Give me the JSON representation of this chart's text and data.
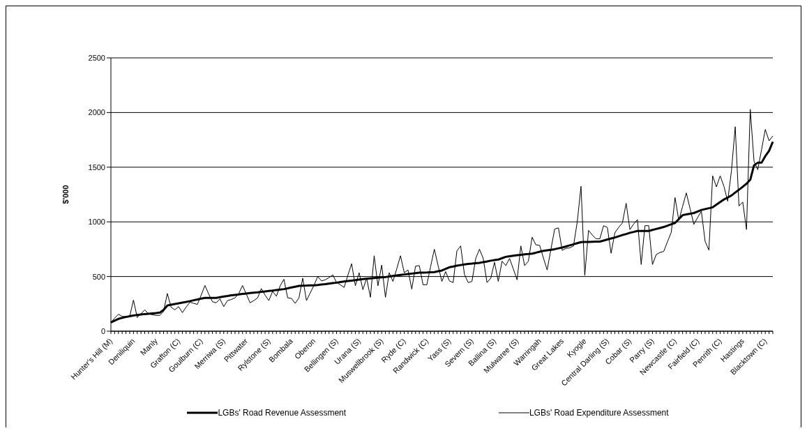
{
  "chart_data": {
    "type": "line",
    "ylabel": "$'000",
    "categories": [
      "Hunter's Hill (M)",
      null,
      null,
      null,
      null,
      null,
      "Deniliquin",
      null,
      null,
      null,
      null,
      null,
      "Manly",
      null,
      null,
      null,
      null,
      null,
      "Grafton (C)",
      null,
      null,
      null,
      null,
      null,
      "Goulburn (C)",
      null,
      null,
      null,
      null,
      null,
      "Merriwa (S)",
      null,
      null,
      null,
      null,
      null,
      "Pittwater",
      null,
      null,
      null,
      null,
      null,
      "Rylstone (S)",
      null,
      null,
      null,
      null,
      null,
      "Bombala",
      null,
      null,
      null,
      null,
      null,
      "Oberon",
      null,
      null,
      null,
      null,
      null,
      "Bellingen (S)",
      null,
      null,
      null,
      null,
      null,
      "Urana (S)",
      null,
      null,
      null,
      null,
      null,
      "Muswellbrook (S)",
      null,
      null,
      null,
      null,
      null,
      "Ryde (C)",
      null,
      null,
      null,
      null,
      null,
      "Randwick (C)",
      null,
      null,
      null,
      null,
      null,
      "Yass (S)",
      null,
      null,
      null,
      null,
      null,
      "Severn (S)",
      null,
      null,
      null,
      null,
      null,
      "Ballina (S)",
      null,
      null,
      null,
      null,
      null,
      "Mulwaree (S)",
      null,
      null,
      null,
      null,
      null,
      "Warringah",
      null,
      null,
      null,
      null,
      null,
      "Great Lakes",
      null,
      null,
      null,
      null,
      null,
      "Kyogle",
      null,
      null,
      null,
      null,
      null,
      "Central Darling (S)",
      null,
      null,
      null,
      null,
      null,
      "Cobar (S)",
      null,
      null,
      null,
      null,
      null,
      "Parry (S)",
      null,
      null,
      null,
      null,
      null,
      "Newcastle (C)",
      null,
      null,
      null,
      null,
      null,
      "Fairfield (C)",
      null,
      null,
      null,
      null,
      null,
      "Penrith (C)",
      null,
      null,
      null,
      null,
      null,
      "Hastings",
      null,
      null,
      null,
      null,
      null,
      "Blacktown (C)",
      null,
      null
    ],
    "series": [
      {
        "name": "LGBs' Road Revenue Assessment",
        "color": "#000000",
        "values": [
          80,
          97,
          113,
          122,
          130,
          137,
          143,
          149,
          153,
          157,
          160,
          163,
          166,
          170,
          195,
          235,
          242,
          249,
          255,
          262,
          268,
          275,
          283,
          290,
          298,
          305,
          305,
          305,
          305,
          311,
          317,
          322,
          328,
          332,
          336,
          341,
          345,
          349,
          353,
          356,
          360,
          364,
          368,
          372,
          377,
          381,
          385,
          392,
          400,
          407,
          415,
          416,
          417,
          419,
          420,
          423,
          427,
          430,
          435,
          440,
          444,
          450,
          455,
          459,
          463,
          467,
          472,
          476,
          480,
          483,
          486,
          489,
          492,
          495,
          500,
          505,
          510,
          515,
          519,
          523,
          527,
          531,
          535,
          536,
          537,
          539,
          540,
          548,
          555,
          570,
          585,
          592,
          600,
          605,
          610,
          615,
          618,
          622,
          625,
          632,
          638,
          645,
          650,
          655,
          668,
          680,
          685,
          690,
          695,
          699,
          703,
          706,
          710,
          718,
          727,
          735,
          740,
          745,
          750,
          758,
          765,
          775,
          785,
          795,
          805,
          815,
          816,
          817,
          818,
          819,
          820,
          829,
          839,
          848,
          857,
          868,
          879,
          889,
          900,
          908,
          917,
          917,
          917,
          917,
          926,
          935,
          944,
          953,
          965,
          978,
          990,
          1025,
          1061,
          1068,
          1074,
          1081,
          1095,
          1109,
          1117,
          1125,
          1133,
          1157,
          1181,
          1205,
          1223,
          1241,
          1268,
          1294,
          1321,
          1349,
          1385,
          1517,
          1541,
          1541,
          1601,
          1649,
          1733
        ]
      },
      {
        "name": "LGBs' Road Expenditure Assessment",
        "color": "#000000",
        "values": [
          80,
          120,
          155,
          135,
          135,
          135,
          285,
          125,
          160,
          195,
          160,
          150,
          145,
          145,
          180,
          345,
          220,
          195,
          225,
          170,
          220,
          265,
          255,
          245,
          330,
          418,
          340,
          270,
          260,
          295,
          225,
          280,
          290,
          305,
          345,
          418,
          340,
          260,
          280,
          305,
          390,
          330,
          280,
          365,
          320,
          415,
          475,
          305,
          300,
          255,
          305,
          485,
          280,
          350,
          420,
          500,
          460,
          470,
          490,
          515,
          445,
          425,
          400,
          510,
          617,
          415,
          535,
          380,
          485,
          310,
          690,
          415,
          605,
          310,
          535,
          455,
          570,
          690,
          535,
          560,
          385,
          595,
          600,
          425,
          425,
          590,
          750,
          600,
          455,
          545,
          460,
          445,
          735,
          780,
          520,
          445,
          455,
          665,
          750,
          665,
          445,
          485,
          630,
          455,
          640,
          600,
          665,
          570,
          470,
          780,
          600,
          640,
          860,
          790,
          785,
          670,
          560,
          750,
          935,
          945,
          739,
          758,
          762,
          780,
          1000,
          1325,
          510,
          922,
          880,
          845,
          845,
          965,
          949,
          713,
          900,
          949,
          990,
          1170,
          930,
          980,
          1021,
          610,
          965,
          965,
          610,
          701,
          720,
          730,
          820,
          905,
          1222,
          1013,
          1140,
          1265,
          1120,
          977,
          1040,
          1097,
          821,
          742,
          1421,
          1320,
          1421,
          1325,
          1189,
          1469,
          1870,
          1145,
          1181,
          930,
          2029,
          1554,
          1477,
          1660,
          1846,
          1741,
          1786
        ]
      }
    ],
    "ylim": [
      0,
      2500
    ],
    "yticks": [
      0,
      500,
      1000,
      1500,
      2000,
      2500
    ],
    "grid": "y",
    "legend": "bottom",
    "marker": "none",
    "line_style": "solid"
  }
}
